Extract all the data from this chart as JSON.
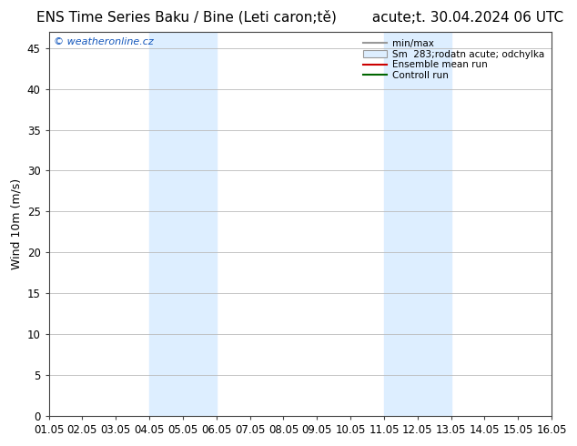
{
  "title_left": "ENS Time Series Baku / Bine (Leti caron;tě)",
  "title_right": "acute;t. 30.04.2024 06 UTC",
  "ylabel": "Wind 10m (m/s)",
  "watermark": "© weatheronline.cz",
  "xticklabels": [
    "01.05",
    "02.05",
    "03.05",
    "04.05",
    "05.05",
    "06.05",
    "07.05",
    "08.05",
    "09.05",
    "10.05",
    "11.05",
    "12.05",
    "13.05",
    "14.05",
    "15.05",
    "16.05"
  ],
  "yticks": [
    0,
    5,
    10,
    15,
    20,
    25,
    30,
    35,
    40,
    45
  ],
  "ylim": [
    0,
    47
  ],
  "xlim": [
    0,
    15
  ],
  "shade_bands": [
    {
      "xstart": 3,
      "xend": 5
    },
    {
      "xstart": 10,
      "xend": 12
    }
  ],
  "shade_color": "#ddeeff",
  "grid_color": "#bbbbbb",
  "background_color": "#ffffff",
  "legend_entries": [
    {
      "label": "min/max",
      "color": "#999999",
      "type": "hline"
    },
    {
      "label": "Sm  283;rodatn acute; odchylka",
      "color": "#ddeeff",
      "type": "fill"
    },
    {
      "label": "Ensemble mean run",
      "color": "#cc0000",
      "type": "line"
    },
    {
      "label": "Controll run",
      "color": "#006600",
      "type": "line"
    }
  ],
  "title_fontsize": 11,
  "label_fontsize": 9,
  "tick_fontsize": 8.5,
  "watermark_fontsize": 8,
  "watermark_color": "#1155bb"
}
